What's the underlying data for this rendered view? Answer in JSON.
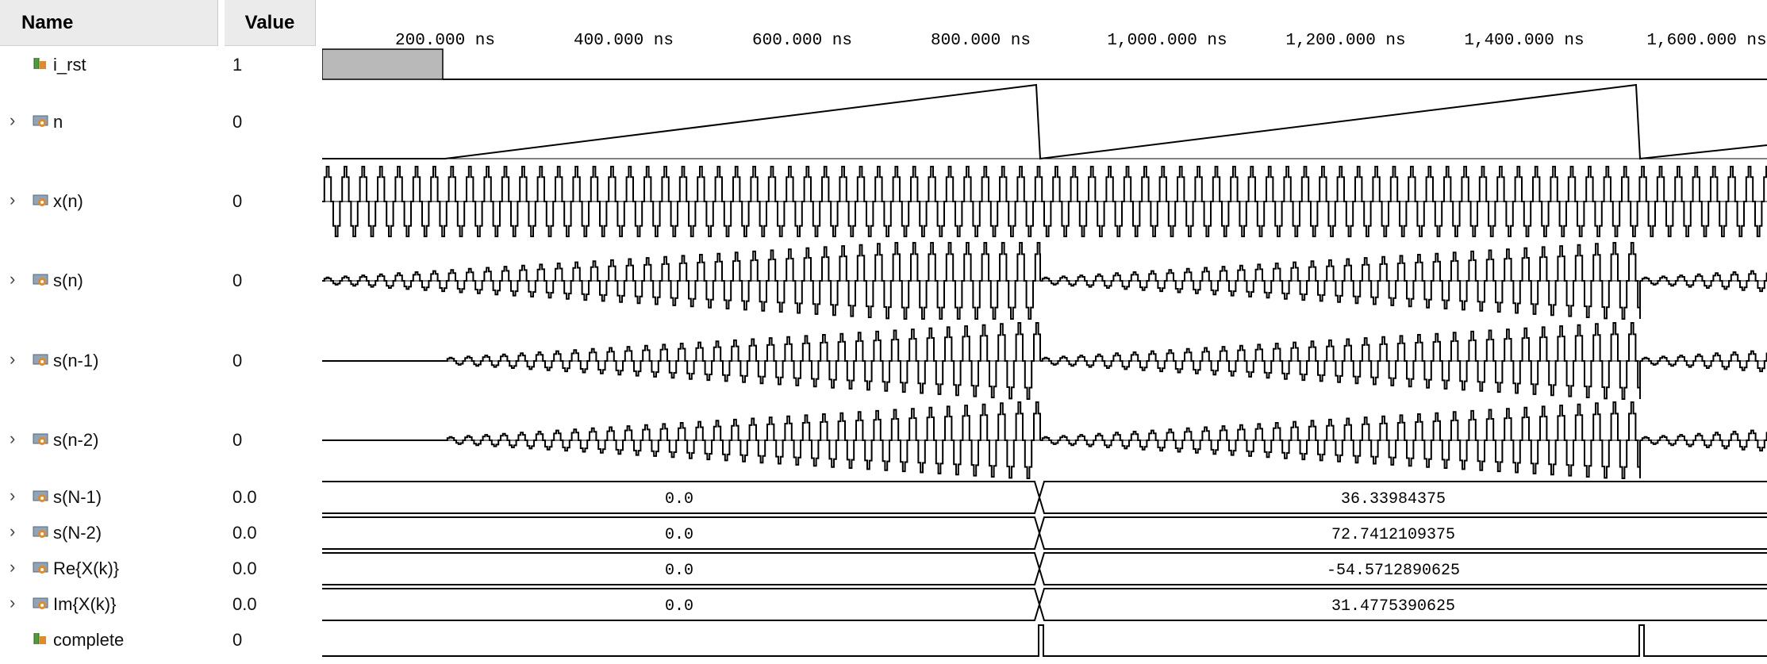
{
  "headers": {
    "name": "Name",
    "value": "Value"
  },
  "signals": [
    {
      "name": "i_rst",
      "value": "1",
      "expandable": false,
      "icon": "bit-signal-icon"
    },
    {
      "name": "n",
      "value": "0",
      "expandable": true,
      "icon": "bus-signal-icon"
    },
    {
      "name": "x(n)",
      "value": "0",
      "expandable": true,
      "icon": "bus-signal-icon"
    },
    {
      "name": "s(n)",
      "value": "0",
      "expandable": true,
      "icon": "bus-signal-icon"
    },
    {
      "name": "s(n-1)",
      "value": "0",
      "expandable": true,
      "icon": "bus-signal-icon"
    },
    {
      "name": "s(n-2)",
      "value": "0",
      "expandable": true,
      "icon": "bus-signal-icon"
    },
    {
      "name": "s(N-1)",
      "value": "0.0",
      "expandable": true,
      "icon": "bus-signal-icon"
    },
    {
      "name": "s(N-2)",
      "value": "0.0",
      "expandable": true,
      "icon": "bus-signal-icon"
    },
    {
      "name": "Re{X(k)}",
      "value": "0.0",
      "expandable": true,
      "icon": "bus-signal-icon"
    },
    {
      "name": "Im{X(k)}",
      "value": "0.0",
      "expandable": true,
      "icon": "bus-signal-icon"
    },
    {
      "name": "complete",
      "value": "0",
      "expandable": false,
      "icon": "bit-signal-icon"
    }
  ],
  "timeline": {
    "ticks": [
      "200.000 ns",
      "400.000 ns",
      "600.000 ns",
      "800.000 ns",
      "1,000.000 ns",
      "1,200.000 ns",
      "1,400.000 ns",
      "1,600.000 ns"
    ]
  },
  "bus_values": [
    {
      "before": "0.0",
      "after": "36.33984375"
    },
    {
      "before": "0.0",
      "after": "72.7412109375"
    },
    {
      "before": "0.0",
      "after": "-54.5712890625"
    },
    {
      "before": "0.0",
      "after": "31.4775390625"
    }
  ],
  "colors": {
    "header_bg": "#ebebeb",
    "wave": "#000000",
    "rst_fill": "#b9b9b9",
    "icon_orange": "#e08a2c",
    "icon_green": "#4f9a3a"
  }
}
